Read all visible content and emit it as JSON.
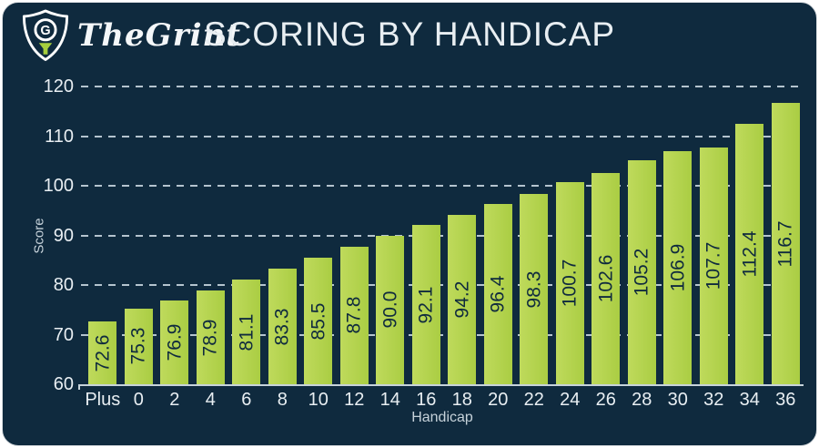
{
  "header": {
    "logo_text": "TheGrint",
    "title": "SCORING BY HANDICAP"
  },
  "colors": {
    "card_background": "#0f2a3e",
    "bar_green": "#b4d54e",
    "logo_tee_green": "#a6ce3d",
    "axis_text": "#e8eef2",
    "dim_text": "#c6d2da"
  },
  "chart_data": {
    "type": "bar",
    "title": "SCORING BY HANDICAP",
    "categories": [
      "Plus",
      "0",
      "2",
      "4",
      "6",
      "8",
      "10",
      "12",
      "14",
      "16",
      "18",
      "20",
      "22",
      "24",
      "26",
      "28",
      "30",
      "32",
      "34",
      "36"
    ],
    "values": [
      72.6,
      75.3,
      76.9,
      78.9,
      81.1,
      83.3,
      85.5,
      87.8,
      90.0,
      92.1,
      94.2,
      96.4,
      98.3,
      100.7,
      102.6,
      105.2,
      106.9,
      107.7,
      112.4,
      116.7
    ],
    "xlabel": "Handicap",
    "ylabel": "Score",
    "ylim": [
      60,
      120
    ],
    "yticks": [
      60,
      70,
      80,
      90,
      100,
      110,
      120
    ],
    "grid": "horizontal dashed",
    "legend": "none",
    "value_labels": "rotated 90deg inside bars, one decimal place"
  }
}
